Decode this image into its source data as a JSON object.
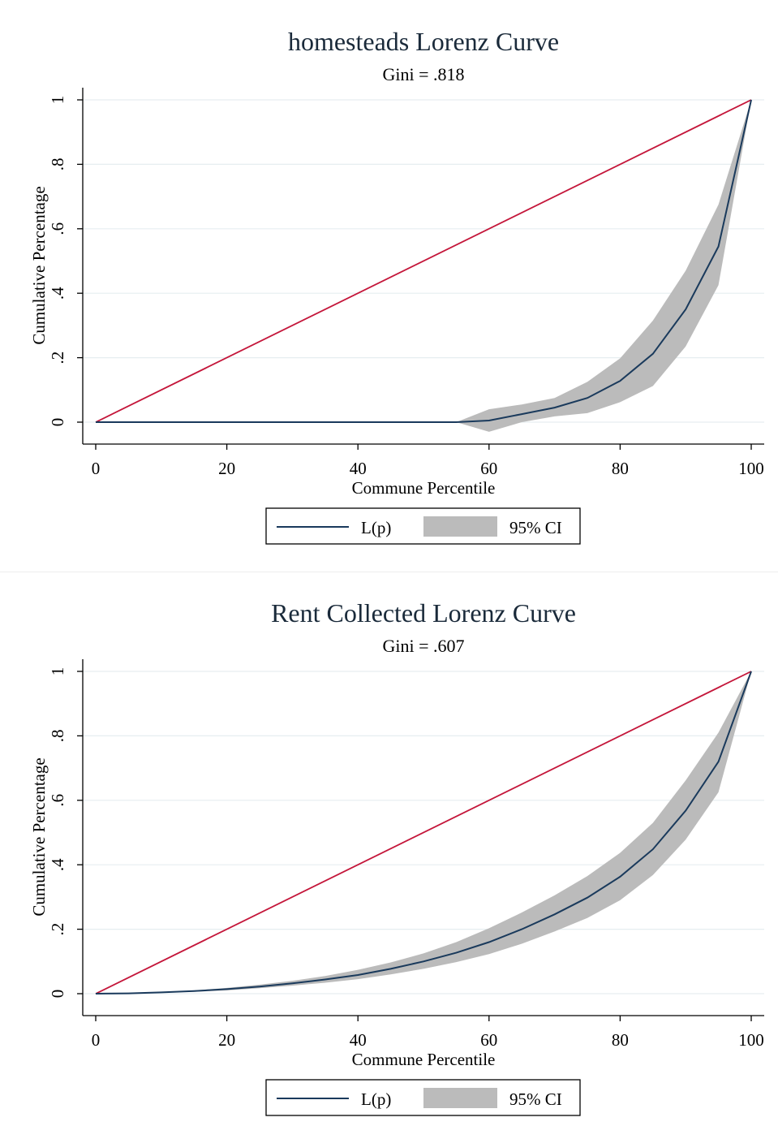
{
  "chart_data": [
    {
      "type": "line",
      "title": "homesteads Lorenz Curve",
      "subtitle": "Gini = .818",
      "xlabel": "Commune Percentile",
      "ylabel": "Cumulative Percentage",
      "xlim": [
        0,
        100
      ],
      "ylim": [
        0,
        1
      ],
      "x_ticks": [
        "0",
        "20",
        "40",
        "60",
        "80",
        "100"
      ],
      "y_ticks": [
        ".",
        ".2",
        ".4",
        ".6",
        ".8",
        "1"
      ],
      "y_tick_labels": [
        "0",
        ".2",
        ".4",
        ".6",
        ".8",
        "1"
      ],
      "grid": true,
      "legend_position": "bottom",
      "legend": [
        "L(p)",
        "95% CI"
      ],
      "colors": {
        "equality": "#c4163a",
        "lorenz": "#1a3a5c",
        "ci": "#bbbbbb"
      },
      "equality_line": {
        "x": [
          0,
          100
        ],
        "y": [
          0,
          1
        ]
      },
      "series": [
        {
          "name": "L(p)",
          "x": [
            0,
            5,
            10,
            15,
            20,
            25,
            30,
            35,
            40,
            45,
            50,
            55,
            60,
            65,
            70,
            75,
            80,
            85,
            90,
            95,
            100
          ],
          "y": [
            0,
            0,
            0,
            0,
            0,
            0,
            0,
            0,
            0,
            0,
            0,
            0,
            0.005,
            0.025,
            0.045,
            0.075,
            0.128,
            0.212,
            0.35,
            0.545,
            1.0
          ]
        }
      ],
      "ci": {
        "name": "95% CI",
        "x": [
          55,
          60,
          65,
          70,
          75,
          80,
          85,
          90,
          95,
          100
        ],
        "lower": [
          0,
          -0.03,
          0.0,
          0.018,
          0.028,
          0.062,
          0.112,
          0.235,
          0.425,
          1.0
        ],
        "upper": [
          0,
          0.04,
          0.055,
          0.075,
          0.125,
          0.198,
          0.315,
          0.47,
          0.675,
          1.0
        ]
      }
    },
    {
      "type": "line",
      "title": "Rent Collected Lorenz Curve",
      "subtitle": "Gini = .607",
      "xlabel": "Commune Percentile",
      "ylabel": "Cumulative Percentage",
      "xlim": [
        0,
        100
      ],
      "ylim": [
        0,
        1
      ],
      "x_ticks": [
        "0",
        "20",
        "40",
        "60",
        "80",
        "100"
      ],
      "y_tick_labels": [
        "0",
        ".2",
        ".4",
        ".6",
        ".8",
        "1"
      ],
      "grid": true,
      "legend_position": "bottom",
      "legend": [
        "L(p)",
        "95% CI"
      ],
      "colors": {
        "equality": "#c4163a",
        "lorenz": "#1a3a5c",
        "ci": "#bbbbbb"
      },
      "equality_line": {
        "x": [
          0,
          100
        ],
        "y": [
          0,
          1
        ]
      },
      "series": [
        {
          "name": "L(p)",
          "x": [
            0,
            5,
            10,
            15,
            20,
            25,
            30,
            35,
            40,
            45,
            50,
            55,
            60,
            65,
            70,
            75,
            80,
            85,
            90,
            95,
            100
          ],
          "y": [
            0,
            0.001,
            0.004,
            0.008,
            0.014,
            0.022,
            0.032,
            0.044,
            0.058,
            0.077,
            0.1,
            0.127,
            0.16,
            0.2,
            0.246,
            0.298,
            0.363,
            0.448,
            0.568,
            0.72,
            1.0
          ]
        }
      ],
      "ci": {
        "name": "95% CI",
        "x": [
          0,
          5,
          10,
          15,
          20,
          25,
          30,
          35,
          40,
          45,
          50,
          55,
          60,
          65,
          70,
          75,
          80,
          85,
          90,
          95,
          100
        ],
        "lower": [
          0,
          0.0,
          0.003,
          0.006,
          0.01,
          0.017,
          0.025,
          0.034,
          0.045,
          0.06,
          0.077,
          0.098,
          0.123,
          0.155,
          0.193,
          0.235,
          0.29,
          0.368,
          0.478,
          0.625,
          1.0
        ],
        "upper": [
          0,
          0.002,
          0.005,
          0.01,
          0.018,
          0.028,
          0.04,
          0.055,
          0.074,
          0.097,
          0.125,
          0.16,
          0.203,
          0.252,
          0.305,
          0.365,
          0.437,
          0.53,
          0.662,
          0.81,
          1.0
        ]
      }
    }
  ]
}
